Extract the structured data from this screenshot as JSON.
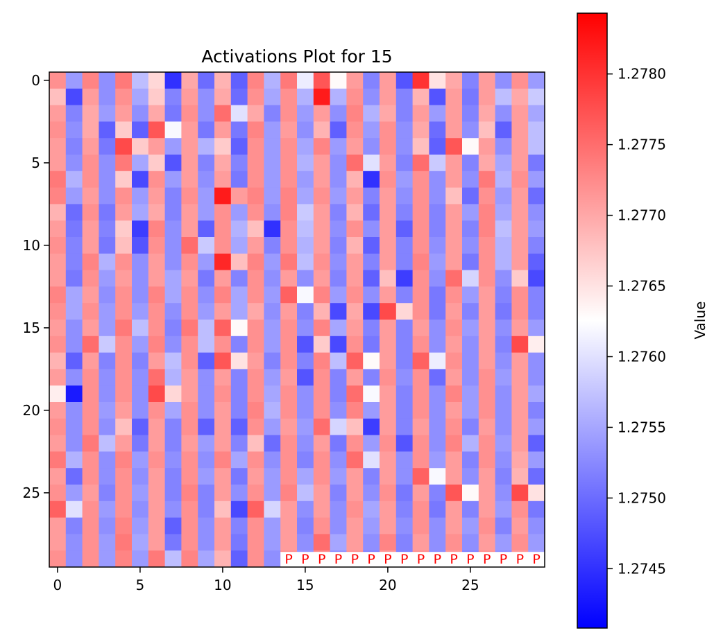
{
  "chart_data": {
    "type": "heatmap",
    "title": "Activations Plot for 15",
    "xlabel": "",
    "ylabel": "",
    "colorbar_label": "Value",
    "colormap": "bwr",
    "colors": {
      "low": "#0000ff",
      "mid": "#ffffff",
      "high": "#ff0000",
      "marker": "#ff0000"
    },
    "rows": 30,
    "cols": 30,
    "xlim": [
      -0.5,
      29.5
    ],
    "ylim": [
      29.5,
      -0.5
    ],
    "x_ticks": [
      0,
      5,
      10,
      15,
      20,
      25
    ],
    "x_tick_labels": [
      "0",
      "5",
      "10",
      "15",
      "20",
      "25"
    ],
    "y_ticks": [
      0,
      5,
      10,
      15,
      20,
      25
    ],
    "y_tick_labels": [
      "0",
      "5",
      "10",
      "15",
      "20",
      "25"
    ],
    "vmin": 1.27408,
    "vmax": 1.27843,
    "colorbar_ticks": [
      1.2745,
      1.275,
      1.2755,
      1.276,
      1.2765,
      1.277,
      1.2775,
      1.278
    ],
    "colorbar_tick_labels": [
      "1.2745",
      "1.2750",
      "1.2755",
      "1.2760",
      "1.2765",
      "1.2770",
      "1.2775",
      "1.2780"
    ],
    "marker_text": "P",
    "markers": [
      {
        "row": 29,
        "col": 14
      },
      {
        "row": 29,
        "col": 15
      },
      {
        "row": 29,
        "col": 16
      },
      {
        "row": 29,
        "col": 17
      },
      {
        "row": 29,
        "col": 18
      },
      {
        "row": 29,
        "col": 19
      },
      {
        "row": 29,
        "col": 20
      },
      {
        "row": 29,
        "col": 21
      },
      {
        "row": 29,
        "col": 22
      },
      {
        "row": 29,
        "col": 23
      },
      {
        "row": 29,
        "col": 24
      },
      {
        "row": 29,
        "col": 25
      },
      {
        "row": 29,
        "col": 26
      },
      {
        "row": 29,
        "col": 27
      },
      {
        "row": 29,
        "col": 28
      },
      {
        "row": 29,
        "col": 29
      }
    ],
    "values": [
      [
        1.2772,
        1.2754,
        1.2773,
        1.2753,
        1.2774,
        1.2757,
        1.2766,
        1.2745,
        1.277,
        1.275,
        1.2769,
        1.2749,
        1.2773,
        1.2756,
        1.2774,
        1.2761,
        1.2777,
        1.2763,
        1.2771,
        1.2752,
        1.2771,
        1.2748,
        1.278,
        1.2765,
        1.277,
        1.2752,
        1.2771,
        1.2753,
        1.2772,
        1.2754
      ],
      [
        1.2768,
        1.2747,
        1.2771,
        1.2753,
        1.2772,
        1.2755,
        1.2767,
        1.2752,
        1.2771,
        1.2753,
        1.277,
        1.275,
        1.2772,
        1.2755,
        1.2772,
        1.2756,
        1.2782,
        1.2756,
        1.2772,
        1.2753,
        1.2771,
        1.2752,
        1.2769,
        1.2748,
        1.2771,
        1.2751,
        1.2771,
        1.2757,
        1.277,
        1.2758
      ],
      [
        1.2771,
        1.2752,
        1.277,
        1.2754,
        1.2771,
        1.2753,
        1.277,
        1.2751,
        1.2772,
        1.2753,
        1.2775,
        1.276,
        1.277,
        1.2752,
        1.2772,
        1.2754,
        1.2771,
        1.2753,
        1.2773,
        1.2756,
        1.277,
        1.2752,
        1.2771,
        1.2754,
        1.2771,
        1.2752,
        1.277,
        1.2753,
        1.2771,
        1.2755
      ],
      [
        1.2772,
        1.2753,
        1.277,
        1.2749,
        1.2767,
        1.2749,
        1.2777,
        1.2762,
        1.2771,
        1.2751,
        1.2771,
        1.2751,
        1.2773,
        1.2754,
        1.2771,
        1.2753,
        1.2769,
        1.2749,
        1.2772,
        1.2754,
        1.2772,
        1.2753,
        1.277,
        1.275,
        1.2771,
        1.2753,
        1.2768,
        1.2749,
        1.2771,
        1.2757
      ],
      [
        1.2771,
        1.2752,
        1.2771,
        1.2751,
        1.2778,
        1.2767,
        1.2771,
        1.2754,
        1.2771,
        1.2756,
        1.2767,
        1.2749,
        1.2772,
        1.2754,
        1.2772,
        1.2755,
        1.2773,
        1.2754,
        1.2771,
        1.2753,
        1.2772,
        1.2753,
        1.2768,
        1.2749,
        1.2777,
        1.2763,
        1.2771,
        1.2753,
        1.2771,
        1.2757
      ],
      [
        1.2771,
        1.2753,
        1.2772,
        1.2753,
        1.2774,
        1.2755,
        1.2767,
        1.2748,
        1.2771,
        1.2752,
        1.277,
        1.2752,
        1.2772,
        1.2754,
        1.2772,
        1.2756,
        1.2771,
        1.2753,
        1.2775,
        1.276,
        1.2771,
        1.2752,
        1.2775,
        1.2758,
        1.2771,
        1.2752,
        1.277,
        1.2755,
        1.2771,
        1.2751
      ],
      [
        1.2774,
        1.2756,
        1.2772,
        1.2753,
        1.2767,
        1.2747,
        1.2772,
        1.2754,
        1.2771,
        1.2753,
        1.2771,
        1.2751,
        1.2772,
        1.2754,
        1.2772,
        1.2754,
        1.2771,
        1.2753,
        1.2769,
        1.2745,
        1.2772,
        1.2754,
        1.2772,
        1.2753,
        1.2771,
        1.2753,
        1.2774,
        1.2756,
        1.2772,
        1.2754
      ],
      [
        1.2773,
        1.2754,
        1.2771,
        1.2753,
        1.2772,
        1.2754,
        1.2771,
        1.2752,
        1.2772,
        1.2754,
        1.2782,
        1.2771,
        1.2773,
        1.2754,
        1.2773,
        1.2755,
        1.2772,
        1.2754,
        1.2771,
        1.2752,
        1.2771,
        1.2753,
        1.2772,
        1.2753,
        1.2768,
        1.275,
        1.2772,
        1.2754,
        1.2771,
        1.275
      ],
      [
        1.2769,
        1.275,
        1.2772,
        1.2751,
        1.2771,
        1.2755,
        1.277,
        1.2752,
        1.2771,
        1.2754,
        1.2772,
        1.2754,
        1.2772,
        1.2753,
        1.2773,
        1.2758,
        1.2771,
        1.2752,
        1.2769,
        1.275,
        1.2771,
        1.2752,
        1.2772,
        1.2752,
        1.2771,
        1.2754,
        1.2773,
        1.2755,
        1.2771,
        1.2753
      ],
      [
        1.2771,
        1.2751,
        1.2771,
        1.2752,
        1.2767,
        1.2746,
        1.2773,
        1.2753,
        1.2771,
        1.2749,
        1.2772,
        1.2756,
        1.2768,
        1.2745,
        1.2772,
        1.2757,
        1.2771,
        1.2753,
        1.2772,
        1.2753,
        1.2771,
        1.2749,
        1.2772,
        1.2752,
        1.2771,
        1.2752,
        1.2773,
        1.2757,
        1.2771,
        1.2754
      ],
      [
        1.2772,
        1.2752,
        1.2771,
        1.2751,
        1.2768,
        1.2748,
        1.2772,
        1.2753,
        1.2775,
        1.2758,
        1.2772,
        1.2755,
        1.2771,
        1.2752,
        1.2772,
        1.2756,
        1.2771,
        1.2752,
        1.2769,
        1.2749,
        1.2771,
        1.2752,
        1.2772,
        1.2753,
        1.2771,
        1.2753,
        1.2772,
        1.2756,
        1.2771,
        1.2752
      ],
      [
        1.2771,
        1.2752,
        1.2773,
        1.2756,
        1.2772,
        1.2753,
        1.2771,
        1.2753,
        1.2772,
        1.2754,
        1.2781,
        1.2768,
        1.2773,
        1.2754,
        1.2774,
        1.2757,
        1.2772,
        1.2753,
        1.2771,
        1.2752,
        1.2771,
        1.2752,
        1.2773,
        1.2754,
        1.2771,
        1.2751,
        1.2772,
        1.2756,
        1.2771,
        1.2749
      ],
      [
        1.2771,
        1.2751,
        1.2772,
        1.2754,
        1.2771,
        1.2753,
        1.2771,
        1.2755,
        1.2771,
        1.2751,
        1.2771,
        1.2752,
        1.2772,
        1.2753,
        1.2771,
        1.2753,
        1.2771,
        1.2752,
        1.2771,
        1.2749,
        1.2768,
        1.2746,
        1.2772,
        1.2753,
        1.2775,
        1.2759,
        1.2772,
        1.2753,
        1.2767,
        1.2747
      ],
      [
        1.2773,
        1.2755,
        1.2771,
        1.2753,
        1.2772,
        1.2753,
        1.2773,
        1.2755,
        1.2772,
        1.2753,
        1.2773,
        1.2755,
        1.2772,
        1.2754,
        1.2776,
        1.2762,
        1.2773,
        1.2754,
        1.2772,
        1.2753,
        1.2771,
        1.2752,
        1.2772,
        1.2751,
        1.2772,
        1.2754,
        1.2771,
        1.2752,
        1.2772,
        1.2752
      ],
      [
        1.2772,
        1.2755,
        1.2772,
        1.2754,
        1.2772,
        1.2754,
        1.2772,
        1.2753,
        1.2772,
        1.2754,
        1.2771,
        1.2755,
        1.277,
        1.2753,
        1.2771,
        1.2752,
        1.2769,
        1.2747,
        1.277,
        1.2747,
        1.2778,
        1.2766,
        1.2772,
        1.2751,
        1.2771,
        1.2752,
        1.2771,
        1.2751,
        1.2772,
        1.2752
      ],
      [
        1.2771,
        1.2753,
        1.2771,
        1.2754,
        1.2774,
        1.2757,
        1.2772,
        1.2752,
        1.2774,
        1.2757,
        1.2776,
        1.2763,
        1.2772,
        1.2754,
        1.2772,
        1.2753,
        1.2773,
        1.2755,
        1.2771,
        1.2752,
        1.2771,
        1.2752,
        1.2771,
        1.2753,
        1.2772,
        1.2754,
        1.2771,
        1.2753,
        1.2771,
        1.2754
      ],
      [
        1.2772,
        1.2753,
        1.2775,
        1.2758,
        1.2772,
        1.2754,
        1.2773,
        1.2753,
        1.2772,
        1.2757,
        1.2772,
        1.2752,
        1.2772,
        1.2754,
        1.2772,
        1.2748,
        1.2767,
        1.2747,
        1.2772,
        1.2751,
        1.2771,
        1.2752,
        1.2772,
        1.2753,
        1.2771,
        1.2753,
        1.2771,
        1.2752,
        1.2778,
        1.2764
      ],
      [
        1.2769,
        1.2749,
        1.2771,
        1.2752,
        1.2772,
        1.2752,
        1.2771,
        1.2757,
        1.2772,
        1.2749,
        1.2777,
        1.2765,
        1.2771,
        1.2752,
        1.2772,
        1.2752,
        1.2773,
        1.2757,
        1.2776,
        1.2763,
        1.2771,
        1.2752,
        1.2776,
        1.2761,
        1.2772,
        1.2753,
        1.2771,
        1.2753,
        1.2771,
        1.2753
      ],
      [
        1.2771,
        1.2753,
        1.2772,
        1.2753,
        1.2772,
        1.2753,
        1.2775,
        1.2756,
        1.2771,
        1.2753,
        1.2771,
        1.2752,
        1.2772,
        1.2754,
        1.2771,
        1.2748,
        1.2772,
        1.2752,
        1.2771,
        1.2752,
        1.2772,
        1.2753,
        1.2772,
        1.275,
        1.2771,
        1.2753,
        1.2772,
        1.2754,
        1.2771,
        1.2753
      ],
      [
        1.2764,
        1.2743,
        1.2772,
        1.2753,
        1.2772,
        1.2753,
        1.2778,
        1.2766,
        1.2771,
        1.2753,
        1.2772,
        1.2752,
        1.2772,
        1.2755,
        1.2772,
        1.2753,
        1.2772,
        1.2752,
        1.2775,
        1.2762,
        1.2771,
        1.2752,
        1.2772,
        1.2753,
        1.2773,
        1.2754,
        1.2772,
        1.2753,
        1.2771,
        1.2755
      ],
      [
        1.2771,
        1.2753,
        1.2772,
        1.2754,
        1.2771,
        1.2753,
        1.2772,
        1.2755,
        1.2772,
        1.2753,
        1.2771,
        1.2752,
        1.2773,
        1.2756,
        1.2772,
        1.2753,
        1.2772,
        1.2753,
        1.2773,
        1.2754,
        1.2771,
        1.2752,
        1.2772,
        1.2753,
        1.2771,
        1.2754,
        1.2772,
        1.2753,
        1.2771,
        1.2752
      ],
      [
        1.2772,
        1.2753,
        1.2772,
        1.2753,
        1.2768,
        1.2749,
        1.2771,
        1.2752,
        1.2772,
        1.2749,
        1.2771,
        1.2749,
        1.2772,
        1.2754,
        1.2771,
        1.2754,
        1.2775,
        1.2759,
        1.2768,
        1.2746,
        1.2771,
        1.2752,
        1.2771,
        1.2753,
        1.2772,
        1.2752,
        1.2771,
        1.2753,
        1.2771,
        1.2754
      ],
      [
        1.2771,
        1.2753,
        1.2774,
        1.2757,
        1.2771,
        1.2751,
        1.2771,
        1.2752,
        1.2771,
        1.2754,
        1.2771,
        1.2752,
        1.2768,
        1.275,
        1.2772,
        1.2753,
        1.2771,
        1.2751,
        1.2772,
        1.2754,
        1.2772,
        1.2748,
        1.2772,
        1.2753,
        1.2773,
        1.2756,
        1.2772,
        1.2754,
        1.2771,
        1.2749
      ],
      [
        1.2774,
        1.2756,
        1.2772,
        1.2753,
        1.2773,
        1.2754,
        1.2772,
        1.2753,
        1.2772,
        1.2753,
        1.2773,
        1.2755,
        1.2772,
        1.2753,
        1.2772,
        1.2752,
        1.2772,
        1.2753,
        1.2775,
        1.276,
        1.2771,
        1.2753,
        1.2772,
        1.2754,
        1.2771,
        1.2752,
        1.2772,
        1.2753,
        1.277,
        1.2754
      ],
      [
        1.2771,
        1.275,
        1.2772,
        1.2753,
        1.2772,
        1.2753,
        1.2771,
        1.2752,
        1.2772,
        1.2754,
        1.2771,
        1.2751,
        1.2771,
        1.2754,
        1.2772,
        1.2755,
        1.2772,
        1.2754,
        1.2771,
        1.2752,
        1.2771,
        1.2753,
        1.2776,
        1.2762,
        1.2771,
        1.2753,
        1.2771,
        1.2752,
        1.2769,
        1.275
      ],
      [
        1.2772,
        1.2754,
        1.2771,
        1.2752,
        1.2772,
        1.2754,
        1.2771,
        1.2752,
        1.2773,
        1.2752,
        1.2771,
        1.2753,
        1.2772,
        1.2754,
        1.2773,
        1.2757,
        1.2771,
        1.2752,
        1.2771,
        1.2753,
        1.2772,
        1.2751,
        1.2771,
        1.2752,
        1.2777,
        1.2763,
        1.2771,
        1.2753,
        1.2778,
        1.2765
      ],
      [
        1.2776,
        1.276,
        1.2772,
        1.2754,
        1.2772,
        1.2753,
        1.2771,
        1.2753,
        1.2772,
        1.2752,
        1.2768,
        1.2747,
        1.2776,
        1.2759,
        1.2771,
        1.2753,
        1.2771,
        1.2753,
        1.2772,
        1.2755,
        1.2771,
        1.2752,
        1.2772,
        1.2751,
        1.2771,
        1.2752,
        1.2771,
        1.2754,
        1.2772,
        1.2751
      ],
      [
        1.2771,
        1.2752,
        1.2772,
        1.2753,
        1.2773,
        1.2754,
        1.2771,
        1.2749,
        1.2772,
        1.2753,
        1.2771,
        1.2752,
        1.2772,
        1.2754,
        1.2771,
        1.2752,
        1.2772,
        1.2753,
        1.2771,
        1.2754,
        1.2771,
        1.2753,
        1.2772,
        1.2753,
        1.2771,
        1.2754,
        1.2772,
        1.2752,
        1.2771,
        1.2753
      ],
      [
        1.2771,
        1.2753,
        1.2772,
        1.2754,
        1.2774,
        1.2755,
        1.2771,
        1.2751,
        1.2772,
        1.2753,
        1.2771,
        1.2751,
        1.2772,
        1.2754,
        1.2771,
        1.2753,
        1.2775,
        1.2755,
        1.2771,
        1.2753,
        1.2773,
        1.2752,
        1.2771,
        1.2753,
        1.2772,
        1.2753,
        1.2771,
        1.2754,
        1.2772,
        1.2754
      ],
      [
        1.2772,
        1.2753,
        1.2772,
        1.2754,
        1.2773,
        1.2754,
        1.2774,
        1.2757,
        1.2773,
        1.2755,
        1.2769,
        1.2749,
        1.2772,
        1.2753,
        1.2772,
        1.2754,
        1.2772,
        1.2753,
        1.2772,
        1.2752,
        1.2771,
        1.2752,
        1.2772,
        1.2753,
        1.2771,
        1.2752,
        1.2772,
        1.2753,
        1.2771,
        1.2755
      ]
    ]
  }
}
